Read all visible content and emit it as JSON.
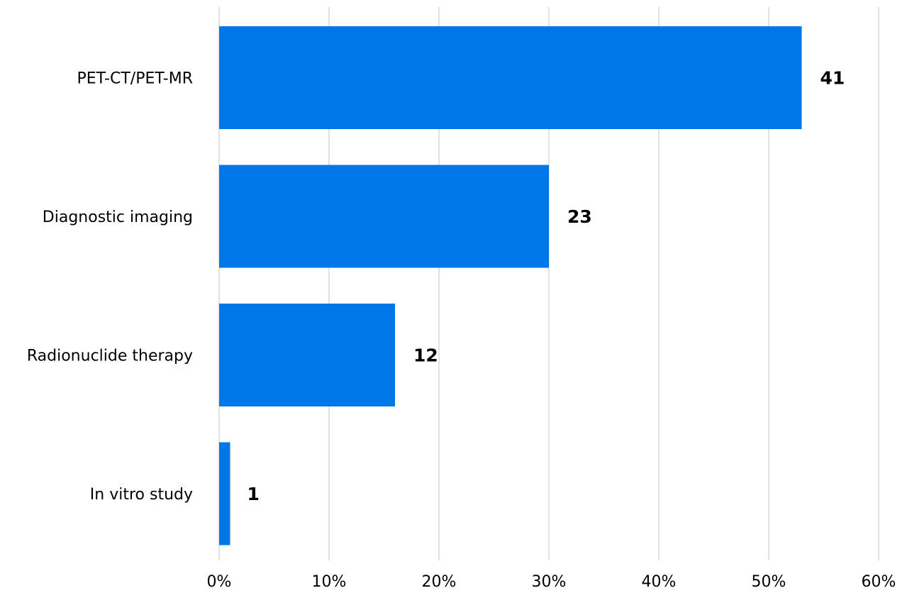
{
  "chart_data": {
    "type": "bar",
    "orientation": "horizontal",
    "categories": [
      "PET-CT/PET-MR",
      "Diagnostic imaging",
      "Radionuclide therapy",
      "In vitro study"
    ],
    "series": [
      {
        "percent": [
          53,
          30,
          16,
          1
        ],
        "counts": [
          "41",
          "23",
          "12",
          "1"
        ]
      }
    ],
    "x_ticks": [
      "0%",
      "10%",
      "20%",
      "30%",
      "40%",
      "50%",
      "60%"
    ],
    "xlim": [
      0,
      60
    ],
    "grid": true,
    "legend": "none",
    "bar_color": "#0077e8",
    "grid_color": "#d9d9d9"
  }
}
